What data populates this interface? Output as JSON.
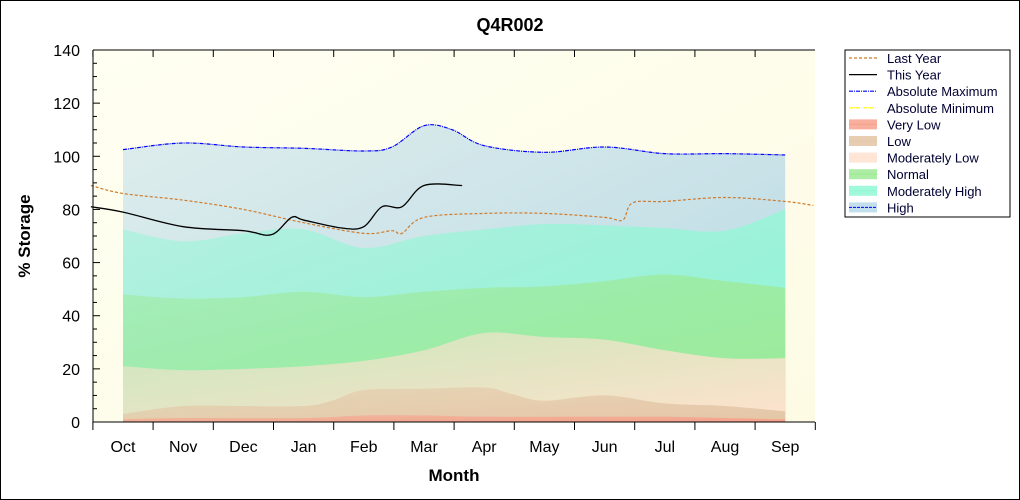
{
  "chart_data": {
    "type": "area",
    "title": "Q4R002",
    "xlabel": "Month",
    "ylabel": "% Storage",
    "ylim": [
      0,
      140
    ],
    "yticks": [
      "0",
      "20",
      "40",
      "60",
      "80",
      "100",
      "120",
      "140"
    ],
    "xticks": [
      "Oct",
      "Nov",
      "Dec",
      "Jan",
      "Feb",
      "Mar",
      "Apr",
      "May",
      "Jun",
      "Jul",
      "Aug",
      "Sep"
    ],
    "grid": false,
    "legend_position": "right",
    "bands": [
      {
        "name": "Very Low",
        "color": "#f7a18c",
        "top": [
          [
            "Oct 1",
            1
          ],
          [
            "Nov 1",
            1.5
          ],
          [
            "Jan 1",
            1.5
          ],
          [
            "Feb 1",
            2.5
          ],
          [
            "Mar 1",
            2.5
          ],
          [
            "Apr 1",
            2
          ],
          [
            "Jun 1",
            2
          ],
          [
            "Jul 1",
            2
          ],
          [
            "Aug 1",
            1.5
          ],
          [
            "Sep 1",
            1
          ]
        ]
      },
      {
        "name": "Low",
        "color": "#e3c6a6",
        "top": [
          [
            "Oct 1",
            3
          ],
          [
            "Nov 1",
            6
          ],
          [
            "Dec 1",
            6
          ],
          [
            "Jan 1",
            6
          ],
          [
            "Jan 15",
            8
          ],
          [
            "Feb 1",
            12
          ],
          [
            "Mar 1",
            12.5
          ],
          [
            "Apr 1",
            13
          ],
          [
            "Apr 15",
            10.5
          ],
          [
            "May 1",
            8
          ],
          [
            "Jun 1",
            10
          ],
          [
            "Jul 1",
            7
          ],
          [
            "Aug 1",
            6
          ],
          [
            "Sep 1",
            4
          ]
        ]
      },
      {
        "name": "Moderately Low",
        "color": "#ffe2cf",
        "top": [
          [
            "Oct 1",
            21
          ],
          [
            "Nov 1",
            19.5
          ],
          [
            "Dec 1",
            20
          ],
          [
            "Jan 1",
            21
          ],
          [
            "Feb 1",
            23
          ],
          [
            "Mar 1",
            27
          ],
          [
            "Apr 1",
            33.5
          ],
          [
            "May 1",
            32
          ],
          [
            "Jun 1",
            31
          ],
          [
            "Jul 1",
            27
          ],
          [
            "Aug 1",
            24
          ],
          [
            "Sep 1",
            24
          ]
        ]
      },
      {
        "name": "Normal",
        "color": "#9de994",
        "top": [
          [
            "Oct 1",
            48
          ],
          [
            "Nov 1",
            46.5
          ],
          [
            "Dec 1",
            47
          ],
          [
            "Jan 1",
            49
          ],
          [
            "Feb 1",
            47
          ],
          [
            "Mar 1",
            49
          ],
          [
            "Apr 1",
            50.5
          ],
          [
            "May 1",
            51
          ],
          [
            "Jun 1",
            53
          ],
          [
            "Jul 1",
            55.5
          ],
          [
            "Aug 1",
            53
          ],
          [
            "Sep 1",
            50.5
          ]
        ]
      },
      {
        "name": "Moderately High",
        "color": "#8ff8d4",
        "top": [
          [
            "Oct 1",
            72.5
          ],
          [
            "Nov 1",
            68
          ],
          [
            "Dec 1",
            71
          ],
          [
            "Jan 1",
            72.5
          ],
          [
            "Feb 1",
            65.5
          ],
          [
            "Mar 1",
            70
          ],
          [
            "Apr 1",
            72.5
          ],
          [
            "May 1",
            74.5
          ],
          [
            "Jun 1",
            74
          ],
          [
            "Jul 1",
            73
          ],
          [
            "Aug 1",
            72
          ],
          [
            "Sep 1",
            80
          ]
        ]
      },
      {
        "name": "High",
        "color": "#b7d9e8",
        "top": [
          [
            "Oct 1",
            102.5
          ],
          [
            "Nov 1",
            105
          ],
          [
            "Dec 1",
            103.5
          ],
          [
            "Jan 1",
            103
          ],
          [
            "Feb 1",
            102
          ],
          [
            "Feb 15",
            103.5
          ],
          [
            "Mar 1",
            111.5
          ],
          [
            "Mar 15",
            110
          ],
          [
            "Apr 1",
            104
          ],
          [
            "May 1",
            101.5
          ],
          [
            "Jun 1",
            103.5
          ],
          [
            "Jul 1",
            101
          ],
          [
            "Aug 1",
            101
          ],
          [
            "Sep 1",
            100.5
          ]
        ]
      }
    ],
    "series": [
      {
        "name": "Last Year",
        "color": "#d07a2a",
        "style": "dashed",
        "points": [
          [
            "Sep 15",
            89
          ],
          [
            "Oct 1",
            86
          ],
          [
            "Nov 1",
            83.5
          ],
          [
            "Dec 1",
            80
          ],
          [
            "Jan 1",
            75
          ],
          [
            "Feb 1",
            71
          ],
          [
            "Feb 15",
            72
          ],
          [
            "Feb 20",
            71
          ],
          [
            "Mar 1",
            77
          ],
          [
            "Apr 1",
            78.5
          ],
          [
            "May 1",
            78.5
          ],
          [
            "Jun 1",
            77
          ],
          [
            "Jun 10",
            76
          ],
          [
            "Jun 15",
            82.5
          ],
          [
            "Jul 1",
            83
          ],
          [
            "Aug 1",
            84.5
          ],
          [
            "Sep 1",
            83
          ],
          [
            "Sep 15",
            81.5
          ]
        ]
      },
      {
        "name": "This Year",
        "color": "#000000",
        "style": "solid",
        "points": [
          [
            "Sep 15",
            81
          ],
          [
            "Oct 1",
            79
          ],
          [
            "Nov 1",
            73.5
          ],
          [
            "Dec 1",
            72
          ],
          [
            "Dec 15",
            70.5
          ],
          [
            "Dec 25",
            77
          ],
          [
            "Jan 1",
            76
          ],
          [
            "Jan 20",
            73
          ],
          [
            "Feb 1",
            73.5
          ],
          [
            "Feb 10",
            81
          ],
          [
            "Feb 20",
            81
          ],
          [
            "Mar 1",
            89
          ],
          [
            "Mar 20",
            89
          ]
        ]
      },
      {
        "name": "Absolute Maximum",
        "color": "#0000ff",
        "style": "dashdot",
        "same_as_band": "High"
      },
      {
        "name": "Absolute Minimum",
        "color": "#ffff00",
        "style": "dashdot",
        "points": []
      }
    ],
    "legend": [
      "Last Year",
      "This Year",
      "Absolute Maximum",
      "Absolute Minimum",
      "Very Low",
      "Low",
      "Moderately Low",
      "Normal",
      "Moderately High",
      "High"
    ]
  }
}
